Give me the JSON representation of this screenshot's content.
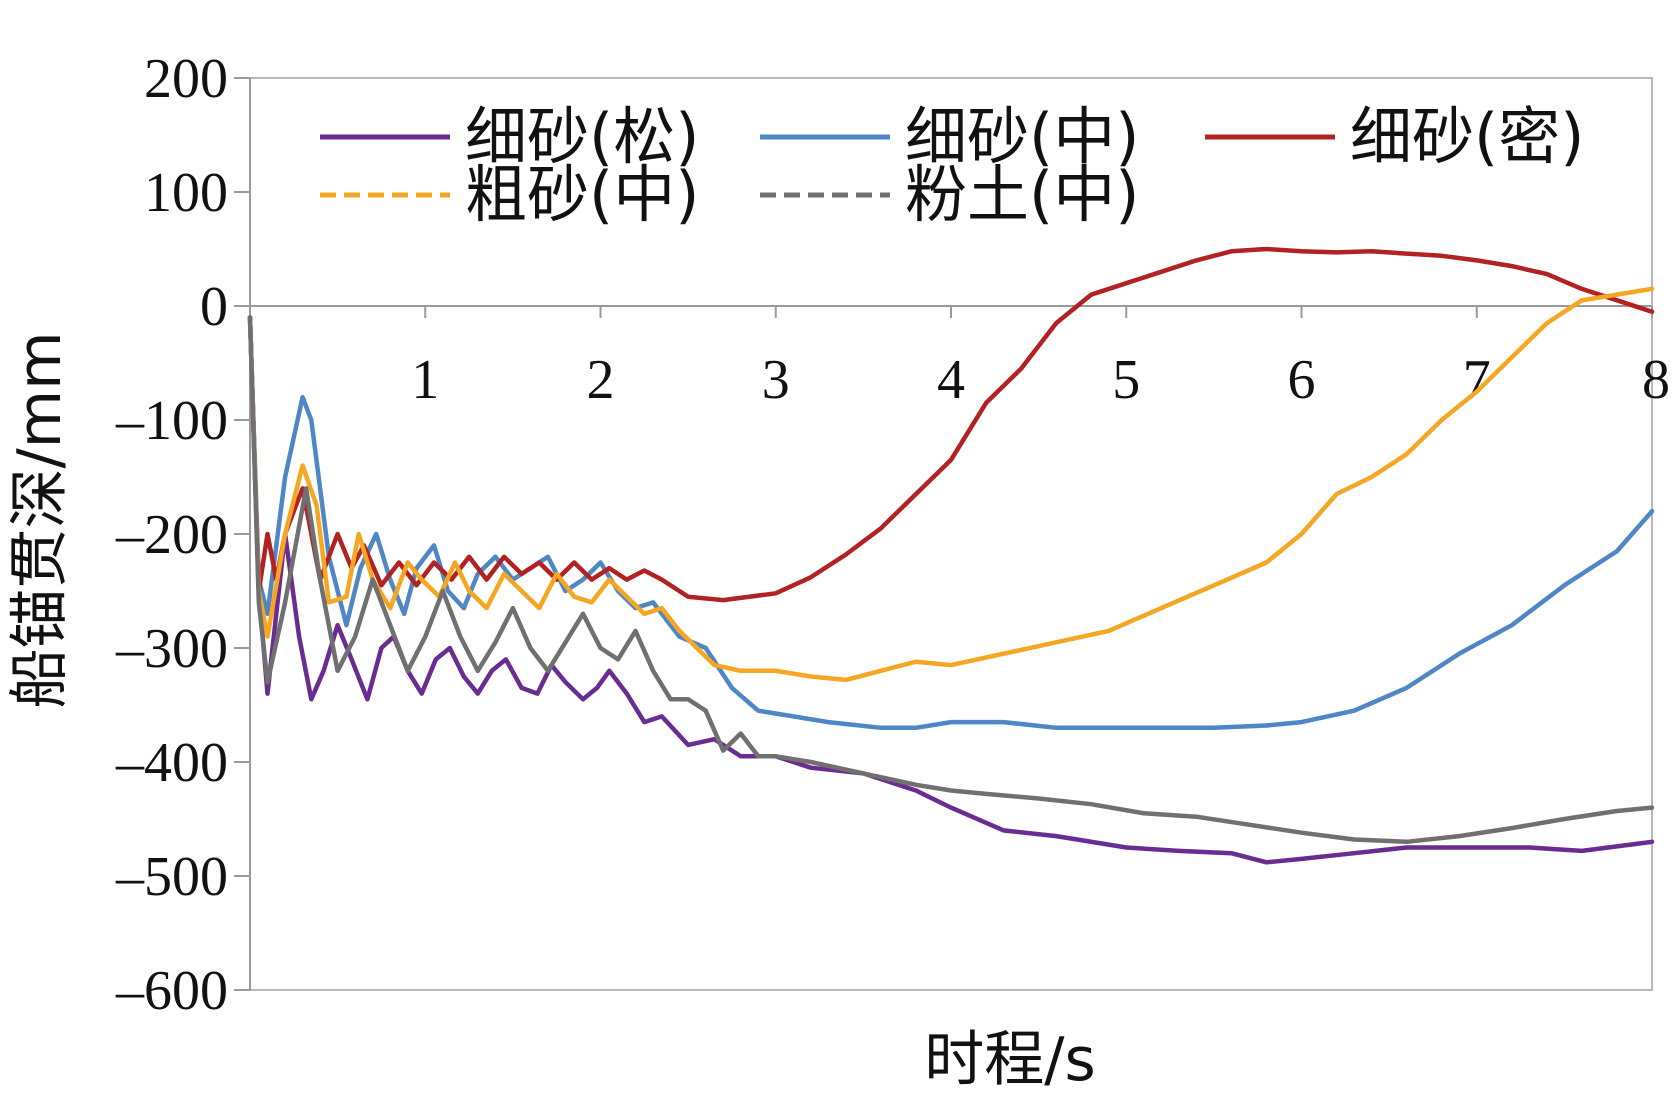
{
  "chart_data": {
    "type": "line",
    "title": "",
    "xlabel": "时程/s",
    "ylabel": "船锚贯深/mm",
    "xlim": [
      0,
      8
    ],
    "ylim": [
      -600,
      200
    ],
    "x_ticks": [
      "1",
      "2",
      "3",
      "4",
      "5",
      "6",
      "7",
      "8"
    ],
    "y_ticks": [
      "200",
      "100",
      "0",
      "–100",
      "–200",
      "–300",
      "–400",
      "–500",
      "–600"
    ],
    "grid": false,
    "legend_position": "top",
    "series": [
      {
        "name": "细砂(松)",
        "color": "#6a2c91",
        "dash": "solid",
        "x": [
          0,
          0.05,
          0.1,
          0.15,
          0.2,
          0.28,
          0.35,
          0.42,
          0.5,
          0.58,
          0.67,
          0.75,
          0.82,
          0.9,
          0.98,
          1.06,
          1.14,
          1.22,
          1.3,
          1.38,
          1.46,
          1.55,
          1.64,
          1.72,
          1.8,
          1.9,
          1.98,
          2.05,
          2.15,
          2.25,
          2.35,
          2.5,
          2.65,
          2.8,
          3.0,
          3.2,
          3.5,
          3.8,
          4.0,
          4.3,
          4.6,
          5.0,
          5.3,
          5.6,
          5.8,
          6.0,
          6.3,
          6.6,
          7.0,
          7.3,
          7.6,
          8.0
        ],
        "y": [
          -10,
          -250,
          -340,
          -270,
          -200,
          -290,
          -345,
          -320,
          -280,
          -310,
          -345,
          -300,
          -290,
          -320,
          -340,
          -310,
          -300,
          -325,
          -340,
          -320,
          -310,
          -335,
          -340,
          -315,
          -330,
          -345,
          -335,
          -320,
          -340,
          -365,
          -360,
          -385,
          -380,
          -395,
          -395,
          -405,
          -410,
          -425,
          -440,
          -460,
          -465,
          -475,
          -478,
          -480,
          -488,
          -485,
          -480,
          -475,
          -475,
          -475,
          -478,
          -470
        ]
      },
      {
        "name": "细砂(中)",
        "color": "#4f86c6",
        "dash": "solid",
        "x": [
          0,
          0.05,
          0.1,
          0.2,
          0.3,
          0.35,
          0.45,
          0.55,
          0.63,
          0.72,
          0.8,
          0.88,
          0.95,
          1.05,
          1.13,
          1.22,
          1.3,
          1.4,
          1.5,
          1.6,
          1.7,
          1.8,
          1.9,
          2.0,
          2.1,
          2.2,
          2.3,
          2.45,
          2.6,
          2.75,
          2.9,
          3.1,
          3.3,
          3.6,
          3.8,
          4.0,
          4.3,
          4.6,
          4.9,
          5.2,
          5.5,
          5.8,
          6.0,
          6.3,
          6.6,
          6.9,
          7.2,
          7.5,
          7.8,
          8.0
        ],
        "y": [
          -10,
          -240,
          -270,
          -150,
          -80,
          -100,
          -220,
          -280,
          -230,
          -200,
          -240,
          -270,
          -230,
          -210,
          -250,
          -265,
          -235,
          -220,
          -240,
          -230,
          -220,
          -250,
          -240,
          -225,
          -250,
          -265,
          -260,
          -290,
          -300,
          -335,
          -355,
          -360,
          -365,
          -370,
          -370,
          -365,
          -365,
          -370,
          -370,
          -370,
          -370,
          -368,
          -365,
          -355,
          -335,
          -305,
          -280,
          -245,
          -215,
          -180
        ]
      },
      {
        "name": "细砂(密)",
        "color": "#b22222",
        "dash": "solid",
        "x": [
          0,
          0.05,
          0.1,
          0.15,
          0.2,
          0.25,
          0.3,
          0.4,
          0.5,
          0.58,
          0.65,
          0.75,
          0.85,
          0.95,
          1.05,
          1.15,
          1.25,
          1.35,
          1.45,
          1.55,
          1.65,
          1.75,
          1.85,
          1.95,
          2.05,
          2.15,
          2.25,
          2.35,
          2.5,
          2.7,
          3.0,
          3.2,
          3.4,
          3.6,
          3.8,
          4.0,
          4.2,
          4.4,
          4.6,
          4.8,
          5.0,
          5.2,
          5.4,
          5.6,
          5.8,
          6.0,
          6.2,
          6.4,
          6.6,
          6.8,
          7.0,
          7.2,
          7.4,
          7.6,
          7.8,
          8.0
        ],
        "y": [
          -10,
          -250,
          -200,
          -240,
          -200,
          -180,
          -160,
          -240,
          -200,
          -230,
          -210,
          -245,
          -225,
          -245,
          -225,
          -240,
          -220,
          -240,
          -220,
          -235,
          -225,
          -240,
          -225,
          -240,
          -230,
          -240,
          -232,
          -240,
          -255,
          -258,
          -252,
          -238,
          -218,
          -195,
          -165,
          -135,
          -85,
          -55,
          -15,
          10,
          20,
          30,
          40,
          48,
          50,
          48,
          47,
          48,
          46,
          44,
          40,
          35,
          28,
          15,
          5,
          -5
        ]
      },
      {
        "name": "粗砂(中)",
        "color": "#f5a623",
        "dash": "dashed",
        "x": [
          0,
          0.05,
          0.1,
          0.2,
          0.3,
          0.38,
          0.45,
          0.55,
          0.62,
          0.7,
          0.8,
          0.9,
          0.98,
          1.08,
          1.17,
          1.25,
          1.35,
          1.45,
          1.55,
          1.65,
          1.75,
          1.85,
          1.95,
          2.05,
          2.15,
          2.25,
          2.35,
          2.45,
          2.55,
          2.65,
          2.8,
          3.0,
          3.2,
          3.4,
          3.6,
          3.8,
          4.0,
          4.3,
          4.6,
          4.9,
          5.2,
          5.5,
          5.8,
          6.0,
          6.2,
          6.4,
          6.6,
          6.8,
          7.0,
          7.2,
          7.4,
          7.6,
          7.8,
          8.0
        ],
        "y": [
          -10,
          -250,
          -290,
          -200,
          -140,
          -175,
          -260,
          -255,
          -200,
          -240,
          -265,
          -225,
          -240,
          -255,
          -225,
          -250,
          -265,
          -235,
          -250,
          -265,
          -235,
          -255,
          -260,
          -240,
          -255,
          -270,
          -265,
          -285,
          -300,
          -315,
          -320,
          -320,
          -325,
          -328,
          -320,
          -312,
          -315,
          -305,
          -295,
          -285,
          -265,
          -245,
          -225,
          -200,
          -165,
          -150,
          -130,
          -100,
          -75,
          -45,
          -15,
          5,
          10,
          15
        ]
      },
      {
        "name": "粉土(中)",
        "color": "#707070",
        "dash": "dashed",
        "x": [
          0,
          0.05,
          0.1,
          0.2,
          0.32,
          0.4,
          0.5,
          0.6,
          0.7,
          0.8,
          0.9,
          1.0,
          1.1,
          1.2,
          1.3,
          1.4,
          1.5,
          1.6,
          1.7,
          1.8,
          1.9,
          2.0,
          2.1,
          2.2,
          2.3,
          2.4,
          2.5,
          2.6,
          2.7,
          2.8,
          2.9,
          3.0,
          3.2,
          3.5,
          3.8,
          4.0,
          4.2,
          4.5,
          4.8,
          5.1,
          5.4,
          5.7,
          6.0,
          6.3,
          6.6,
          6.9,
          7.2,
          7.5,
          7.8,
          8.0
        ],
        "y": [
          -10,
          -260,
          -330,
          -260,
          -160,
          -240,
          -320,
          -290,
          -240,
          -280,
          -320,
          -290,
          -250,
          -290,
          -320,
          -295,
          -265,
          -300,
          -320,
          -295,
          -270,
          -300,
          -310,
          -285,
          -320,
          -345,
          -345,
          -355,
          -390,
          -375,
          -395,
          -395,
          -400,
          -410,
          -420,
          -425,
          -428,
          -432,
          -437,
          -445,
          -448,
          -455,
          -462,
          -468,
          -470,
          -465,
          -458,
          -450,
          -443,
          -440
        ]
      }
    ]
  }
}
